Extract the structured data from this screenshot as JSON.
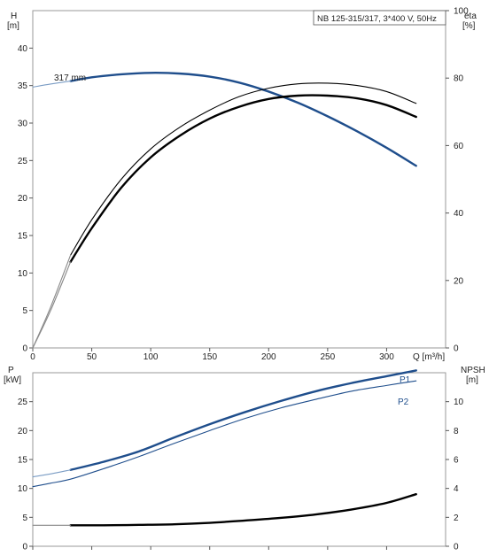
{
  "chart_data": [
    {
      "type": "line",
      "title": "NB 125-315/317, 3*400 V, 50Hz",
      "xlabel": "Q [m³/h]",
      "xlim": [
        0,
        350
      ],
      "x_ticks": [
        "0",
        "50",
        "100",
        "150",
        "200",
        "250",
        "300"
      ],
      "y_left": {
        "label_lines": [
          "H",
          "[m]"
        ],
        "lim": [
          0,
          45
        ],
        "ticks": [
          "0",
          "5",
          "10",
          "15",
          "20",
          "25",
          "30",
          "35",
          "40"
        ]
      },
      "y_right": {
        "label_lines": [
          "eta",
          "[%]"
        ],
        "lim": [
          0,
          100
        ],
        "ticks": [
          "0",
          "20",
          "40",
          "60",
          "80",
          "100"
        ]
      },
      "grid": false,
      "series": [
        {
          "name": "317 mm",
          "axis": "left",
          "color": "#1f4e8c",
          "style": "thick",
          "x": [
            32,
            50,
            75,
            100,
            125,
            150,
            175,
            200,
            225,
            250,
            275,
            300,
            325
          ],
          "y": [
            35.6,
            36.1,
            36.5,
            36.7,
            36.6,
            36.2,
            35.4,
            34.2,
            32.7,
            30.9,
            28.9,
            26.7,
            24.3
          ]
        },
        {
          "axis": "left",
          "color": "#7a9cc4",
          "style": "thin",
          "x": [
            0,
            15,
            32
          ],
          "y": [
            34.8,
            35.2,
            35.6
          ]
        },
        {
          "axis": "right",
          "color": "#000000",
          "style": "thin",
          "x": [
            32,
            50,
            75,
            100,
            125,
            150,
            175,
            200,
            225,
            250,
            275,
            300,
            325
          ],
          "y": [
            27.5,
            38,
            50,
            59,
            65.5,
            70.5,
            74.5,
            77,
            78.3,
            78.5,
            77.8,
            76,
            72.5
          ]
        },
        {
          "axis": "right",
          "color": "#000000",
          "style": "thick",
          "x": [
            32,
            50,
            75,
            100,
            125,
            150,
            175,
            200,
            225,
            250,
            275,
            300,
            325
          ],
          "y": [
            25.5,
            35.5,
            47.5,
            56.5,
            63,
            68,
            71.5,
            73.8,
            74.8,
            74.8,
            74,
            72,
            68.5
          ]
        },
        {
          "axis": "right",
          "color": "#888888",
          "style": "thin",
          "x": [
            0,
            15,
            32
          ],
          "y": [
            0,
            12,
            27.5
          ]
        },
        {
          "axis": "right",
          "color": "#888888",
          "style": "thin",
          "x": [
            0,
            15,
            32
          ],
          "y": [
            0,
            11,
            25.5
          ]
        }
      ]
    },
    {
      "type": "line",
      "xlim": [
        0,
        350
      ],
      "y_left": {
        "label_lines": [
          "P",
          "[kW]"
        ],
        "lim": [
          0,
          30
        ],
        "ticks": [
          "0",
          "5",
          "10",
          "15",
          "20",
          "25"
        ]
      },
      "y_right": {
        "label_lines": [
          "NPSH",
          "[m]"
        ],
        "lim": [
          0,
          12
        ],
        "ticks": [
          "0",
          "2",
          "4",
          "6",
          "8",
          "10"
        ]
      },
      "grid": false,
      "series": [
        {
          "name": "P1",
          "axis": "left",
          "color": "#1f4e8c",
          "style": "thick",
          "x": [
            32,
            60,
            90,
            120,
            150,
            180,
            210,
            240,
            270,
            300,
            325
          ],
          "y": [
            13.2,
            14.6,
            16.4,
            18.8,
            21.1,
            23.2,
            25.1,
            26.8,
            28.2,
            29.4,
            30.4
          ]
        },
        {
          "axis": "left",
          "color": "#7a9cc4",
          "style": "thin",
          "x": [
            0,
            15,
            32
          ],
          "y": [
            12.0,
            12.5,
            13.2
          ]
        },
        {
          "name": "P2",
          "axis": "left",
          "color": "#1f4e8c",
          "style": "thin",
          "x": [
            0,
            15,
            32,
            60,
            90,
            120,
            150,
            180,
            210,
            240,
            270,
            300,
            325
          ],
          "y": [
            10.3,
            10.9,
            11.6,
            13.4,
            15.5,
            17.8,
            20.0,
            22.1,
            23.9,
            25.4,
            26.8,
            27.8,
            28.6
          ]
        },
        {
          "axis": "right",
          "color": "#000000",
          "style": "thick",
          "x": [
            32,
            60,
            90,
            120,
            150,
            180,
            210,
            240,
            270,
            300,
            325
          ],
          "y": [
            1.45,
            1.45,
            1.48,
            1.52,
            1.62,
            1.78,
            1.96,
            2.2,
            2.54,
            3.0,
            3.6
          ]
        },
        {
          "axis": "right",
          "color": "#888888",
          "style": "thin",
          "x": [
            0,
            32
          ],
          "y": [
            1.45,
            1.45
          ]
        }
      ]
    }
  ]
}
